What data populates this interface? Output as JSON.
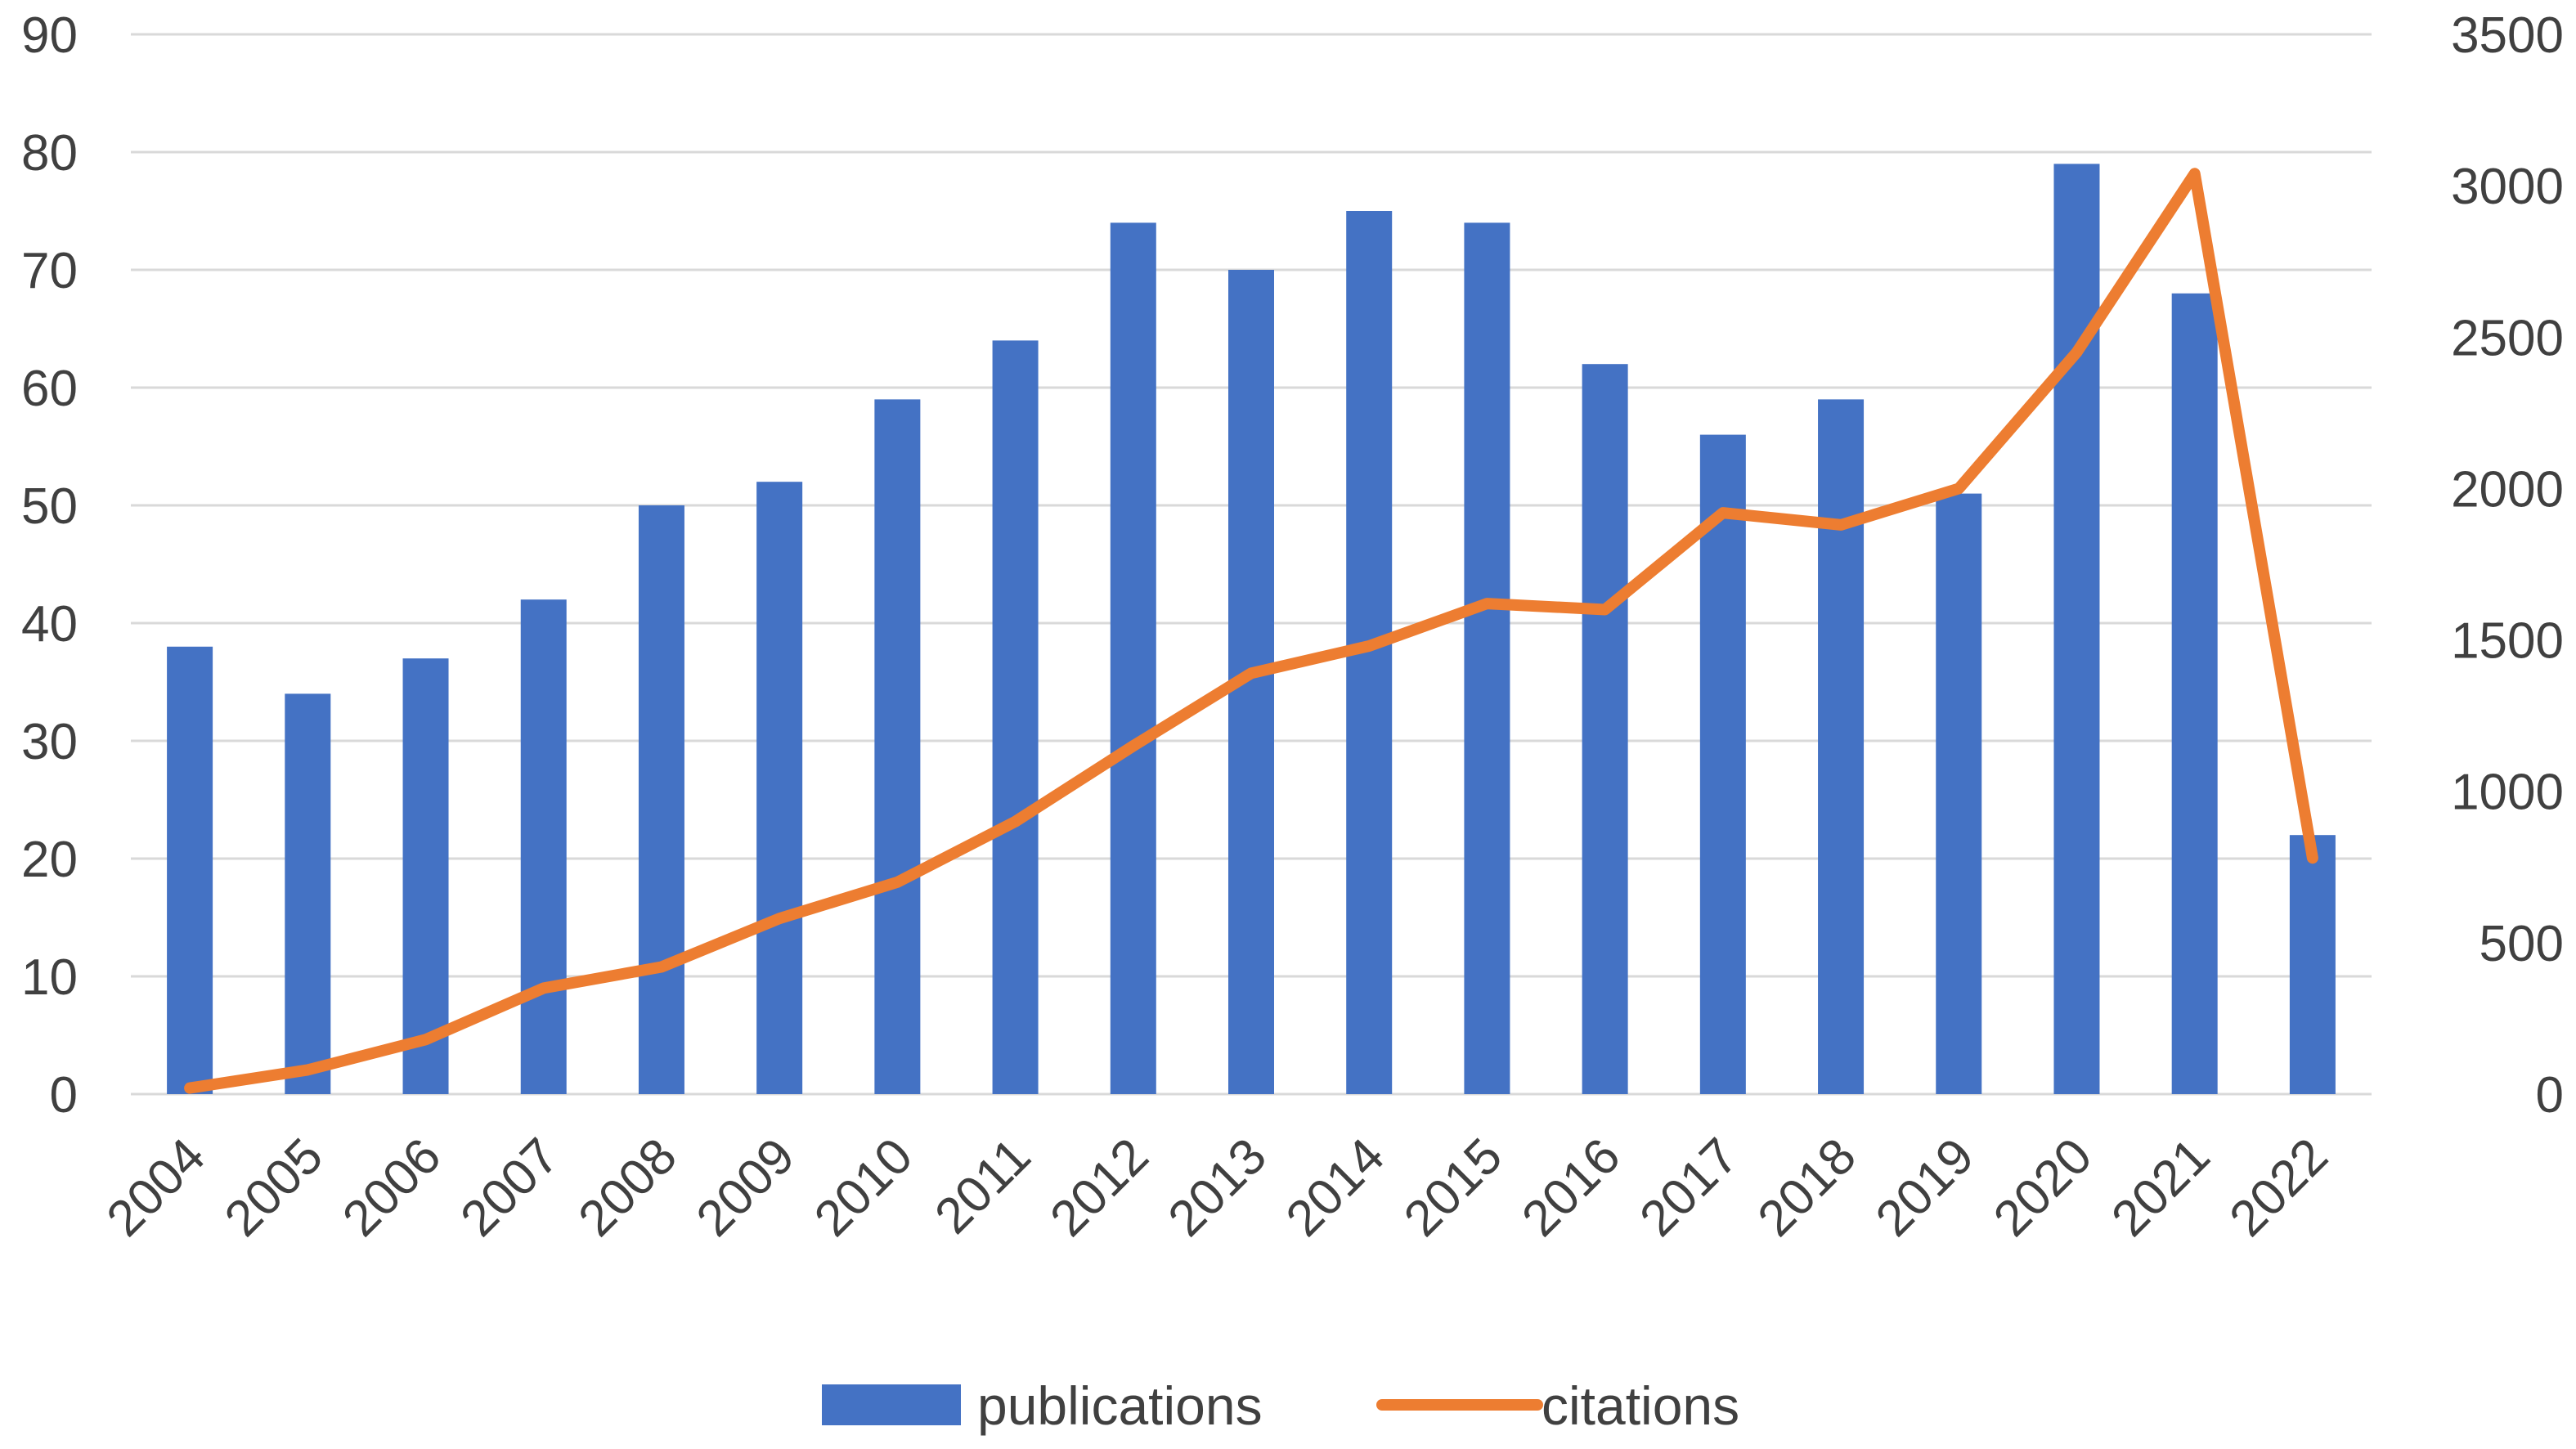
{
  "chart_data": {
    "type": "bar",
    "categories": [
      "2004",
      "2005",
      "2006",
      "2007",
      "2008",
      "2009",
      "2010",
      "2011",
      "2012",
      "2013",
      "2014",
      "2015",
      "2016",
      "2017",
      "2018",
      "2019",
      "2020",
      "2021",
      "2022"
    ],
    "series": [
      {
        "name": "publications",
        "type": "bar",
        "axis": "left",
        "color": "#4472C4",
        "values": [
          38,
          34,
          37,
          42,
          50,
          52,
          59,
          64,
          74,
          70,
          75,
          74,
          62,
          56,
          59,
          51,
          79,
          68,
          22
        ]
      },
      {
        "name": "citations",
        "type": "line",
        "axis": "right",
        "color": "#ED7D31",
        "values": [
          20,
          80,
          180,
          350,
          420,
          580,
          700,
          900,
          1150,
          1390,
          1480,
          1620,
          1600,
          1920,
          1880,
          2000,
          2450,
          3040,
          780
        ]
      }
    ],
    "y_left": {
      "ylim": [
        0,
        90
      ],
      "ticks": [
        0,
        10,
        20,
        30,
        40,
        50,
        60,
        70,
        80,
        90
      ]
    },
    "y_right": {
      "ylim": [
        0,
        3500
      ],
      "ticks": [
        0,
        500,
        1000,
        1500,
        2000,
        2500,
        3000,
        3500
      ]
    },
    "grid": true,
    "legend_position": "bottom",
    "x_tick_rotation": "-45deg"
  },
  "legend": {
    "publications": "publications",
    "citations": "citations"
  }
}
